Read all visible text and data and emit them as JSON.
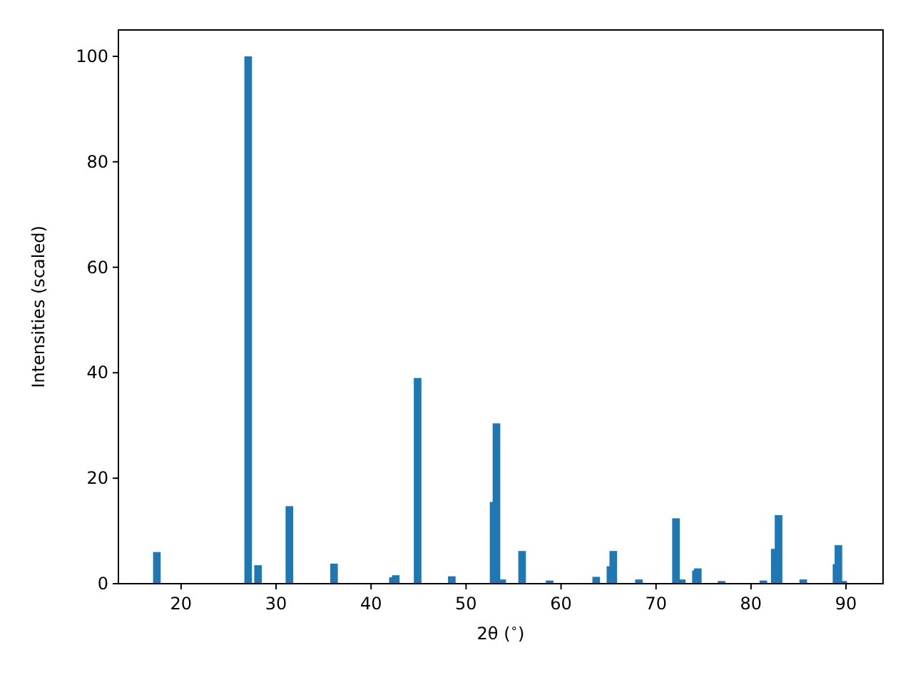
{
  "chart_data": {
    "type": "bar",
    "xlabel": "2θ ($^{∘}$)",
    "ylabel": "Intensities (scaled)",
    "x": [
      17.45,
      27.06,
      28.1,
      31.4,
      36.1,
      42.3,
      42.6,
      44.9,
      48.5,
      52.9,
      53.2,
      53.8,
      55.9,
      58.8,
      63.7,
      65.2,
      65.5,
      68.2,
      72.1,
      72.7,
      74.2,
      74.4,
      76.9,
      81.3,
      82.5,
      82.9,
      85.5,
      89.0,
      89.2,
      89.7
    ],
    "series": [
      {
        "color": "#1f77b4",
        "values": [
          6.0,
          100,
          3.5,
          14.7,
          3.8,
          1.2,
          1.6,
          39,
          1.4,
          15.5,
          30.4,
          0.8,
          6.2,
          0.6,
          1.3,
          3.3,
          6.2,
          0.8,
          12.4,
          0.8,
          2.5,
          2.9,
          0.5,
          0.6,
          6.6,
          13,
          0.8,
          3.7,
          7.3,
          0.5
        ]
      }
    ],
    "xlim": [
      13.4,
      93.9
    ],
    "ylim": [
      0,
      105
    ],
    "xticks": [
      20,
      30,
      40,
      50,
      60,
      70,
      80,
      90
    ],
    "yticks": [
      0,
      20,
      40,
      60,
      80,
      100
    ]
  }
}
